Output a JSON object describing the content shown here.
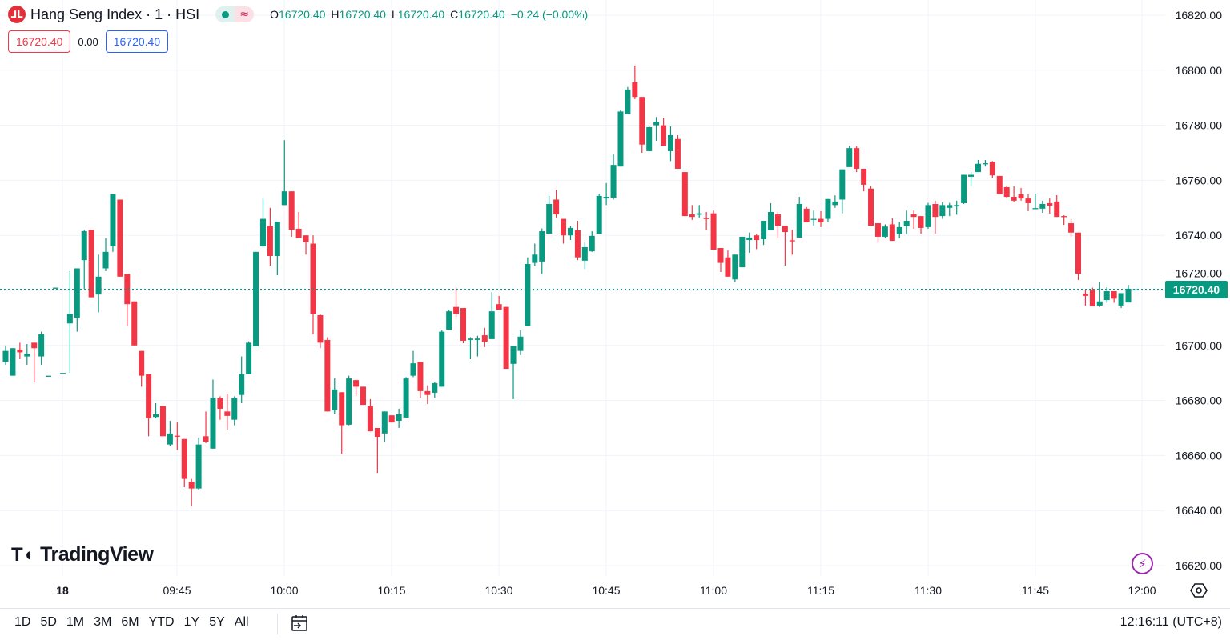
{
  "legend": {
    "symbol_icon": "hsi-logo-icon",
    "title": "Hang Seng Index · 1 · HSI",
    "status_icons": [
      "market-open-dot-icon",
      "delayed-data-icon"
    ],
    "delayed_glyph": "≈",
    "o_label": "O",
    "o_value": "16720.40",
    "h_label": "H",
    "h_value": "16720.40",
    "l_label": "L",
    "l_value": "16720.40",
    "c_label": "C",
    "c_value": "16720.40",
    "change": "−0.24 (−0.00%)"
  },
  "trade": {
    "sell": "16720.40",
    "spread": "0.00",
    "buy": "16720.40"
  },
  "logo_text": "TradingView",
  "current_price_label": "16720.40",
  "toolbar": {
    "ranges": [
      "1D",
      "5D",
      "1M",
      "3M",
      "6M",
      "YTD",
      "1Y",
      "5Y",
      "All"
    ],
    "clock": "12:16:11 (UTC+8)"
  },
  "colors": {
    "up": "#089981",
    "down": "#f23645",
    "grid": "#f0f3fa",
    "last_price": "#089981"
  },
  "chart_data": {
    "type": "candlestick",
    "title": "Hang Seng Index · 1 · HSI",
    "interval": "1 minute",
    "ylim": [
      16620,
      16820
    ],
    "y_ticks": [
      "16820.00",
      "16800.00",
      "16780.00",
      "16760.00",
      "16740.00",
      "16720.00",
      "16700.00",
      "16680.00",
      "16660.00",
      "16640.00",
      "16620.00"
    ],
    "x_ticks": [
      "18",
      "09:45",
      "10:00",
      "10:15",
      "10:30",
      "10:45",
      "11:00",
      "11:15",
      "11:30",
      "11:45",
      "12:00"
    ],
    "grid": true,
    "last_price": 16720.4,
    "ohlc": [
      [
        16694,
        16700,
        16693,
        16698
      ],
      [
        16689,
        16699,
        16689,
        16699
      ],
      [
        16698.5,
        16701,
        16695,
        16697.5
      ],
      [
        16696,
        16700.5,
        16693,
        16697
      ],
      [
        16701,
        16701,
        16686.6,
        16699
      ],
      [
        16696,
        16705,
        16693,
        16704
      ],
      [
        16689,
        16689,
        16689,
        16689
      ],
      [
        16721,
        16721,
        16721,
        16721
      ],
      [
        16690,
        16690,
        16690,
        16690
      ],
      [
        16708,
        16727,
        16690,
        16711.5
      ],
      [
        16710,
        16728,
        16705,
        16728
      ],
      [
        16731,
        16742,
        16720.6,
        16741.5
      ],
      [
        16742,
        16742,
        16717.5,
        16717.5
      ],
      [
        16718.5,
        16733,
        16712,
        16725
      ],
      [
        16728,
        16739,
        16727,
        16734
      ],
      [
        16736,
        16755,
        16734,
        16755
      ],
      [
        16753,
        16753,
        16725,
        16725
      ],
      [
        16726,
        16726,
        16707,
        16715
      ],
      [
        16716,
        16716,
        16700,
        16700
      ],
      [
        16698,
        16698,
        16685,
        16689
      ],
      [
        16689.5,
        16689.5,
        16667,
        16673.5
      ],
      [
        16674,
        16679,
        16673.5,
        16675
      ],
      [
        16678,
        16678,
        16667,
        16667
      ],
      [
        16664,
        16672.6,
        16663.6,
        16668
      ],
      [
        16667.2,
        16672,
        16662,
        16667
      ],
      [
        16666,
        16666,
        16648.5,
        16651.5
      ],
      [
        16650.5,
        16651.5,
        16641.5,
        16648
      ],
      [
        16648,
        16666.5,
        16647.5,
        16664
      ],
      [
        16667,
        16676,
        16664.5,
        16665
      ],
      [
        16662.5,
        16687.6,
        16662.5,
        16681
      ],
      [
        16680.8,
        16681.5,
        16673,
        16677
      ],
      [
        16676,
        16682.5,
        16669.5,
        16674.4
      ],
      [
        16673,
        16681.5,
        16671,
        16681
      ],
      [
        16682,
        16696,
        16679,
        16689.5
      ],
      [
        16689.5,
        16701.5,
        16689.5,
        16701
      ],
      [
        16699.7,
        16734,
        16699.7,
        16734
      ],
      [
        16736,
        16753.4,
        16735.5,
        16746
      ],
      [
        16743.5,
        16750,
        16729,
        16732.5
      ],
      [
        16732.5,
        16745,
        16725.5,
        16745
      ],
      [
        16751,
        16774.6,
        16751,
        16756
      ],
      [
        16756,
        16756,
        16739.5,
        16742
      ],
      [
        16742.4,
        16748.5,
        16739,
        16739
      ],
      [
        16740,
        16740,
        16733,
        16737.5
      ],
      [
        16737,
        16740,
        16704,
        16711.5
      ],
      [
        16711,
        16711.5,
        16699,
        16701
      ],
      [
        16702,
        16703,
        16676,
        16676
      ],
      [
        16676.4,
        16688,
        16675,
        16684
      ],
      [
        16683,
        16683,
        16660.7,
        16671
      ],
      [
        16671.2,
        16689,
        16671,
        16688
      ],
      [
        16687.4,
        16687.6,
        16681.6,
        16685
      ],
      [
        16685,
        16685,
        16678.4,
        16678.4
      ],
      [
        16678,
        16680.5,
        16668.8,
        16668.8
      ],
      [
        16670,
        16670,
        16653.7,
        16666.8
      ],
      [
        16668,
        16676,
        16665,
        16676
      ],
      [
        16674.6,
        16674.6,
        16672,
        16672
      ],
      [
        16672.6,
        16677,
        16670,
        16675
      ],
      [
        16673.8,
        16688.5,
        16673.5,
        16688
      ],
      [
        16689,
        16698,
        16688.5,
        16693.5
      ],
      [
        16694,
        16694,
        16681,
        16683.4
      ],
      [
        16683.4,
        16685.5,
        16678.7,
        16682
      ],
      [
        16682.8,
        16686.6,
        16681,
        16686.3
      ],
      [
        16685,
        16705.5,
        16685,
        16705
      ],
      [
        16705.7,
        16713,
        16705.5,
        16712.4
      ],
      [
        16714,
        16721,
        16710.3,
        16711.5
      ],
      [
        16713.6,
        16713.6,
        16700.8,
        16701.7
      ],
      [
        16702,
        16703,
        16695,
        16702.5
      ],
      [
        16702,
        16703.5,
        16696,
        16702.5
      ],
      [
        16703.7,
        16706.4,
        16699.4,
        16701.4
      ],
      [
        16702.3,
        16719.4,
        16702.3,
        16712.4
      ],
      [
        16715,
        16718,
        16713,
        16713
      ],
      [
        16714,
        16714,
        16691.5,
        16691.5
      ],
      [
        16693.3,
        16699.8,
        16680.5,
        16699.8
      ],
      [
        16698,
        16705.5,
        16696.5,
        16703.2
      ],
      [
        16707,
        16732,
        16707,
        16729.6
      ],
      [
        16730,
        16737,
        16729,
        16733
      ],
      [
        16730.5,
        16742.5,
        16726,
        16741.5
      ],
      [
        16740.6,
        16754.3,
        16740.6,
        16751.4
      ],
      [
        16753,
        16756.6,
        16746.5,
        16747.6
      ],
      [
        16746,
        16746,
        16737,
        16740
      ],
      [
        16740,
        16743.3,
        16738.3,
        16742.7
      ],
      [
        16741.8,
        16745.3,
        16731,
        16732
      ],
      [
        16730.8,
        16737.4,
        16727.8,
        16735.7
      ],
      [
        16734.2,
        16741.5,
        16734,
        16739.8
      ],
      [
        16740.6,
        16755.2,
        16740.6,
        16754.3
      ],
      [
        16753.4,
        16759,
        16751,
        16754
      ],
      [
        16753.7,
        16769.4,
        16753,
        16765.6
      ],
      [
        16765,
        16785.6,
        16765,
        16785
      ],
      [
        16784,
        16793.9,
        16784,
        16793
      ],
      [
        16795.6,
        16801.7,
        16789.5,
        16790.3
      ],
      [
        16790.3,
        16790.3,
        16770,
        16773
      ],
      [
        16770.6,
        16779.6,
        16770.6,
        16779.3
      ],
      [
        16780,
        16783,
        16774.4,
        16781.3
      ],
      [
        16780,
        16782.5,
        16772.6,
        16772.6
      ],
      [
        16770.6,
        16779.6,
        16767,
        16776.4
      ],
      [
        16775,
        16776.4,
        16764.2,
        16764.2
      ],
      [
        16763,
        16763,
        16747,
        16747
      ],
      [
        16747.6,
        16751,
        16745.6,
        16746.7
      ],
      [
        16747.5,
        16751,
        16746.5,
        16748
      ],
      [
        16746.3,
        16748.5,
        16741.8,
        16746
      ],
      [
        16748,
        16749,
        16734.8,
        16734.8
      ],
      [
        16735.4,
        16735.4,
        16726.7,
        16730
      ],
      [
        16732,
        16734.5,
        16725,
        16725
      ],
      [
        16724,
        16733,
        16723,
        16733
      ],
      [
        16728.4,
        16739.5,
        16728.4,
        16739.5
      ],
      [
        16738.3,
        16741,
        16733.7,
        16739.2
      ],
      [
        16740,
        16740.3,
        16735,
        16738.3
      ],
      [
        16738.6,
        16745.3,
        16736.5,
        16745.3
      ],
      [
        16741.8,
        16751.7,
        16741.8,
        16748.5
      ],
      [
        16747.6,
        16748.5,
        16739,
        16743.5
      ],
      [
        16743.5,
        16743.5,
        16729,
        16741.2
      ],
      [
        16738.2,
        16742,
        16733,
        16738
      ],
      [
        16739.2,
        16754,
        16739.2,
        16751.4
      ],
      [
        16749.7,
        16750.3,
        16744.7,
        16744.7
      ],
      [
        16746,
        16749,
        16743.5,
        16746
      ],
      [
        16746,
        16748.8,
        16743,
        16744.7
      ],
      [
        16746,
        16753.2,
        16744.7,
        16753.2
      ],
      [
        16751,
        16754.5,
        16750,
        16752.3
      ],
      [
        16753,
        16764,
        16748,
        16764
      ],
      [
        16764.8,
        16772.6,
        16764.8,
        16771.7
      ],
      [
        16771.7,
        16772.3,
        16763,
        16764.2
      ],
      [
        16764.2,
        16764.2,
        16756,
        16758.4
      ],
      [
        16757,
        16757.8,
        16743.5,
        16743.5
      ],
      [
        16744.4,
        16744.4,
        16737.4,
        16739.5
      ],
      [
        16739.5,
        16744,
        16738.9,
        16743.2
      ],
      [
        16744,
        16746.2,
        16738,
        16738
      ],
      [
        16740.6,
        16745,
        16739,
        16743
      ],
      [
        16743.3,
        16749,
        16740.5,
        16745.3
      ],
      [
        16747.6,
        16749,
        16742.4,
        16746.7
      ],
      [
        16747,
        16747,
        16740.6,
        16742.7
      ],
      [
        16743,
        16751.8,
        16742.4,
        16751
      ],
      [
        16751.4,
        16752.6,
        16740.6,
        16746.7
      ],
      [
        16747,
        16752,
        16746,
        16751
      ],
      [
        16750,
        16751.8,
        16747,
        16751
      ],
      [
        16751,
        16752.6,
        16747.5,
        16751
      ],
      [
        16751.7,
        16762,
        16751.4,
        16762
      ],
      [
        16761.3,
        16763,
        16758,
        16762
      ],
      [
        16763,
        16767.4,
        16763,
        16766
      ],
      [
        16766,
        16767.4,
        16765,
        16766.2
      ],
      [
        16766.8,
        16767,
        16761,
        16761.8
      ],
      [
        16761.6,
        16761.6,
        16755,
        16755
      ],
      [
        16757.5,
        16758.1,
        16753.4,
        16754
      ],
      [
        16754,
        16757.8,
        16752,
        16752.6
      ],
      [
        16754.9,
        16757.2,
        16752.6,
        16753.4
      ],
      [
        16753.4,
        16754.9,
        16748.8,
        16751.7
      ],
      [
        16749.7,
        16755.2,
        16749.5,
        16749.9
      ],
      [
        16749.7,
        16752.6,
        16748.2,
        16751.4
      ],
      [
        16751.7,
        16753.4,
        16747.9,
        16750.8
      ],
      [
        16752.3,
        16754.6,
        16746.7,
        16746.7
      ],
      [
        16747,
        16747.3,
        16743.8,
        16746.8
      ],
      [
        16744.4,
        16745.9,
        16739.5,
        16741
      ],
      [
        16741,
        16741,
        16723.8,
        16726
      ],
      [
        16718.8,
        16720,
        16714.5,
        16718
      ],
      [
        16720,
        16721,
        16714.2,
        16714.2
      ],
      [
        16714.5,
        16723.2,
        16714,
        16716
      ],
      [
        16716.5,
        16721.2,
        16715.5,
        16719.7
      ],
      [
        16719.7,
        16719.7,
        16715.5,
        16717
      ],
      [
        16714.5,
        16719,
        16713.6,
        16719
      ],
      [
        16715.6,
        16722,
        16715.6,
        16720.6
      ],
      [
        16720.4,
        16720.4,
        16720.4,
        16720.4
      ]
    ]
  }
}
